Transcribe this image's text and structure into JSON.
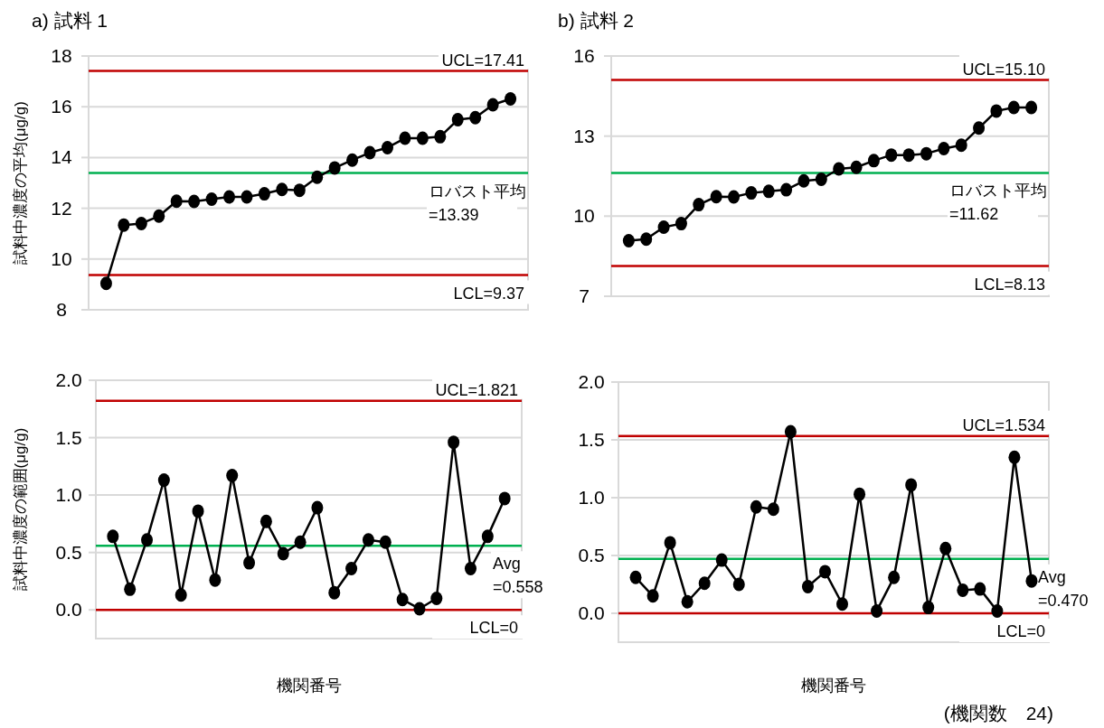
{
  "chart_data": [
    {
      "type": "line",
      "title": "a)  試料 1",
      "ylabel": "試料中濃度の平均(μg/g)",
      "categories": [
        null,
        null,
        null,
        null,
        null,
        null,
        null,
        null,
        null,
        null,
        null,
        null,
        null,
        null,
        null,
        null,
        null,
        null,
        null,
        null,
        null,
        null,
        null,
        null
      ],
      "marker": "circle",
      "grid": "y",
      "tick_labels": "y",
      "ylim": [
        8,
        18
      ],
      "yticks": [
        8,
        10,
        12,
        14,
        16,
        18
      ],
      "series": [
        {
          "color": "#000000",
          "values": [
            9.04,
            11.34,
            11.4,
            11.69,
            12.28,
            12.27,
            12.36,
            12.45,
            12.45,
            12.57,
            12.74,
            12.71,
            13.22,
            13.59,
            13.9,
            14.19,
            14.39,
            14.76,
            14.76,
            14.82,
            15.49,
            15.57,
            16.08,
            16.31
          ]
        }
      ],
      "ref_lines": [
        {
          "axis": "y",
          "value": 17.41,
          "label": "UCL=17.41",
          "color": "#c00000"
        },
        {
          "axis": "y",
          "value": 13.39,
          "label": "ロバスト平均\n=13.39",
          "color": "#00b050"
        },
        {
          "axis": "y",
          "value": 9.37,
          "label": "LCL=9.37",
          "color": "#c00000"
        }
      ]
    },
    {
      "type": "line",
      "title": "b)  試料 2",
      "categories": [
        null,
        null,
        null,
        null,
        null,
        null,
        null,
        null,
        null,
        null,
        null,
        null,
        null,
        null,
        null,
        null,
        null,
        null,
        null,
        null,
        null,
        null,
        null,
        null
      ],
      "marker": "circle",
      "grid": "y",
      "tick_labels": "y",
      "ylim": [
        7,
        16
      ],
      "yticks": [
        7,
        10,
        13,
        16
      ],
      "series": [
        {
          "color": "#000000",
          "values": [
            9.08,
            9.14,
            9.59,
            9.72,
            10.43,
            10.73,
            10.72,
            10.87,
            10.93,
            10.99,
            11.32,
            11.38,
            11.77,
            11.83,
            12.08,
            12.29,
            12.29,
            12.34,
            12.53,
            12.66,
            13.3,
            13.94,
            14.07,
            14.07
          ]
        }
      ],
      "ref_lines": [
        {
          "axis": "y",
          "value": 15.1,
          "label": "UCL=15.10",
          "color": "#c00000"
        },
        {
          "axis": "y",
          "value": 11.62,
          "label": "ロバスト平均\n=11.62",
          "color": "#00b050"
        },
        {
          "axis": "y",
          "value": 8.13,
          "label": "LCL=8.13",
          "color": "#c00000"
        }
      ]
    },
    {
      "type": "line",
      "ylabel": "試料中濃度の範囲(μg/g)",
      "xlabel": "機関番号",
      "categories": [
        null,
        null,
        null,
        null,
        null,
        null,
        null,
        null,
        null,
        null,
        null,
        null,
        null,
        null,
        null,
        null,
        null,
        null,
        null,
        null,
        null,
        null,
        null,
        null
      ],
      "marker": "circle",
      "grid": "y",
      "tick_labels": "y",
      "ylim": [
        -0.25,
        2.0
      ],
      "yticks": [
        {
          "value": 0,
          "label": "0.0"
        },
        {
          "value": 0.5,
          "label": "0.5"
        },
        {
          "value": 1,
          "label": "1.0"
        },
        {
          "value": 1.5,
          "label": "1.5"
        },
        {
          "value": 2,
          "label": "2.0"
        }
      ],
      "series": [
        {
          "color": "#000000",
          "values": [
            0.64,
            0.18,
            0.61,
            1.13,
            0.13,
            0.86,
            0.26,
            1.17,
            0.41,
            0.77,
            0.49,
            0.59,
            0.89,
            0.15,
            0.36,
            0.61,
            0.59,
            0.09,
            0.01,
            0.1,
            1.46,
            0.36,
            0.64,
            0.97
          ]
        }
      ],
      "ref_lines": [
        {
          "axis": "y",
          "value": 1.821,
          "label": "UCL=1.821",
          "color": "#c00000"
        },
        {
          "axis": "y",
          "value": 0.558,
          "label": "Avg\n=0.558",
          "color": "#00b050"
        },
        {
          "axis": "y",
          "value": 0,
          "label": "LCL=0",
          "color": "#c00000"
        }
      ]
    },
    {
      "type": "line",
      "xlabel": "機関番号",
      "categories": [
        null,
        null,
        null,
        null,
        null,
        null,
        null,
        null,
        null,
        null,
        null,
        null,
        null,
        null,
        null,
        null,
        null,
        null,
        null,
        null,
        null,
        null,
        null,
        null
      ],
      "marker": "circle",
      "grid": "y",
      "tick_labels": "y",
      "ylim": [
        -0.25,
        2.0
      ],
      "yticks": [
        {
          "value": 0,
          "label": "0.0"
        },
        {
          "value": 0.5,
          "label": "0.5"
        },
        {
          "value": 1,
          "label": "1.0"
        },
        {
          "value": 1.5,
          "label": "1.5"
        },
        {
          "value": 2,
          "label": "2.0"
        }
      ],
      "series": [
        {
          "color": "#000000",
          "values": [
            0.31,
            0.15,
            0.61,
            0.1,
            0.26,
            0.46,
            0.25,
            0.92,
            0.9,
            1.57,
            0.23,
            0.36,
            0.08,
            1.03,
            0.02,
            0.31,
            1.11,
            0.05,
            0.56,
            0.2,
            0.21,
            0.02,
            1.35,
            0.28
          ]
        }
      ],
      "ref_lines": [
        {
          "axis": "y",
          "value": 1.534,
          "label": "UCL=1.534",
          "color": "#c00000"
        },
        {
          "axis": "y",
          "value": 0.47,
          "label": "Avg\n=0.470",
          "color": "#00b050"
        },
        {
          "axis": "y",
          "value": 0,
          "label": "LCL=0",
          "color": "#c00000"
        }
      ],
      "annotations": [
        "(機関数　24)"
      ]
    }
  ]
}
